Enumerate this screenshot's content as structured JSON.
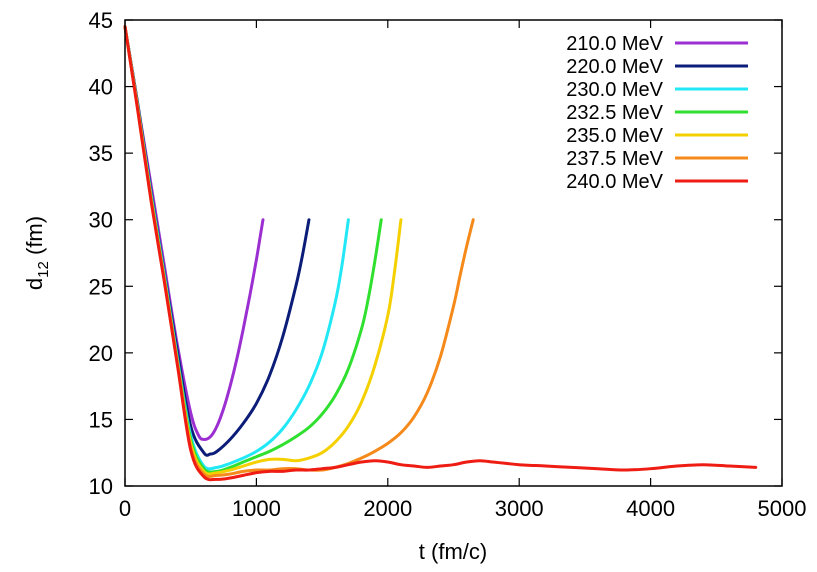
{
  "chart_data": {
    "type": "line",
    "title": "",
    "xlabel": "t (fm/c)",
    "ylabel_main": "d",
    "ylabel_sub": "12",
    "ylabel_unit": " (fm)",
    "xlim": [
      0,
      5000
    ],
    "ylim": [
      10,
      45
    ],
    "xticks": [
      0,
      1000,
      2000,
      3000,
      4000,
      5000
    ],
    "yticks": [
      10,
      15,
      20,
      25,
      30,
      35,
      40,
      45
    ],
    "grid": false,
    "legend_position": "top-right",
    "series": [
      {
        "name": "210.0 MeV",
        "color": "#9b2fd1",
        "x": [
          0,
          100,
          200,
          300,
          400,
          500,
          560,
          600,
          650,
          700,
          750,
          800,
          850,
          900,
          950,
          1000,
          1030,
          1050
        ],
        "y": [
          44.5,
          38.5,
          32.5,
          26.5,
          20.5,
          15.5,
          13.8,
          13.5,
          13.7,
          14.5,
          15.8,
          17.5,
          19.5,
          21.8,
          24.3,
          27.0,
          28.8,
          30.0
        ]
      },
      {
        "name": "220.0 MeV",
        "color": "#0b1d78",
        "x": [
          0,
          100,
          200,
          300,
          400,
          500,
          600,
          650,
          700,
          800,
          900,
          1000,
          1100,
          1200,
          1300,
          1350,
          1400
        ],
        "y": [
          44.5,
          38.5,
          32.0,
          26.0,
          20.0,
          14.5,
          12.5,
          12.4,
          12.6,
          13.5,
          14.7,
          16.2,
          18.3,
          21.2,
          25.0,
          27.3,
          30.0
        ]
      },
      {
        "name": "230.0 MeV",
        "color": "#22e8f6",
        "x": [
          0,
          100,
          200,
          300,
          400,
          500,
          600,
          700,
          800,
          900,
          1000,
          1100,
          1200,
          1300,
          1400,
          1500,
          1600,
          1650,
          1700
        ],
        "y": [
          44.5,
          38.3,
          31.8,
          25.8,
          19.5,
          13.8,
          11.5,
          11.4,
          11.7,
          12.1,
          12.6,
          13.3,
          14.3,
          15.7,
          17.5,
          20.0,
          23.8,
          26.5,
          30.0
        ]
      },
      {
        "name": "232.5 MeV",
        "color": "#2fe02f",
        "x": [
          0,
          100,
          200,
          300,
          400,
          500,
          600,
          700,
          800,
          900,
          1000,
          1100,
          1200,
          1300,
          1400,
          1500,
          1600,
          1700,
          1800,
          1850,
          1900,
          1950
        ],
        "y": [
          44.5,
          38.2,
          31.6,
          25.6,
          19.3,
          13.5,
          11.3,
          11.1,
          11.4,
          11.8,
          12.2,
          12.6,
          13.1,
          13.7,
          14.4,
          15.4,
          16.8,
          18.8,
          21.8,
          24.0,
          26.8,
          30.0
        ]
      },
      {
        "name": "235.0 MeV",
        "color": "#f5d000",
        "x": [
          0,
          100,
          200,
          300,
          400,
          500,
          600,
          700,
          800,
          900,
          1000,
          1100,
          1200,
          1300,
          1400,
          1500,
          1600,
          1700,
          1800,
          1900,
          2000,
          2050,
          2100
        ],
        "y": [
          44.5,
          38.2,
          31.5,
          25.5,
          19.2,
          13.2,
          11.1,
          11.0,
          11.2,
          11.5,
          11.8,
          12.0,
          12.0,
          11.9,
          12.1,
          12.5,
          13.3,
          14.5,
          16.3,
          19.0,
          22.8,
          26.0,
          30.0
        ]
      },
      {
        "name": "237.5 MeV",
        "color": "#f5891a",
        "x": [
          0,
          100,
          200,
          300,
          400,
          500,
          600,
          700,
          800,
          900,
          1000,
          1100,
          1200,
          1300,
          1400,
          1500,
          1600,
          1700,
          1800,
          1900,
          2000,
          2100,
          2200,
          2300,
          2400,
          2500,
          2550,
          2600,
          2650
        ],
        "y": [
          44.5,
          38.1,
          31.4,
          25.4,
          19.1,
          12.9,
          10.9,
          10.8,
          10.9,
          11.1,
          11.2,
          11.2,
          11.3,
          11.3,
          11.2,
          11.2,
          11.4,
          11.7,
          12.1,
          12.6,
          13.2,
          14.0,
          15.2,
          17.0,
          19.7,
          23.5,
          25.8,
          28.0,
          30.0
        ]
      },
      {
        "name": "240.0 MeV",
        "color": "#ee1c12",
        "x": [
          0,
          100,
          200,
          300,
          400,
          500,
          600,
          700,
          800,
          900,
          1000,
          1100,
          1200,
          1300,
          1400,
          1500,
          1600,
          1700,
          1800,
          1900,
          2000,
          2100,
          2200,
          2300,
          2400,
          2500,
          2600,
          2700,
          2800,
          2900,
          3000,
          3200,
          3400,
          3600,
          3800,
          4000,
          4200,
          4400,
          4600,
          4800
        ],
        "y": [
          44.5,
          38.0,
          31.3,
          25.3,
          19.0,
          12.7,
          10.7,
          10.5,
          10.6,
          10.8,
          11.0,
          11.1,
          11.1,
          11.2,
          11.2,
          11.3,
          11.4,
          11.6,
          11.8,
          11.9,
          11.8,
          11.6,
          11.5,
          11.4,
          11.5,
          11.6,
          11.8,
          11.9,
          11.8,
          11.7,
          11.6,
          11.5,
          11.4,
          11.3,
          11.2,
          11.3,
          11.5,
          11.6,
          11.5,
          11.4
        ]
      }
    ]
  }
}
